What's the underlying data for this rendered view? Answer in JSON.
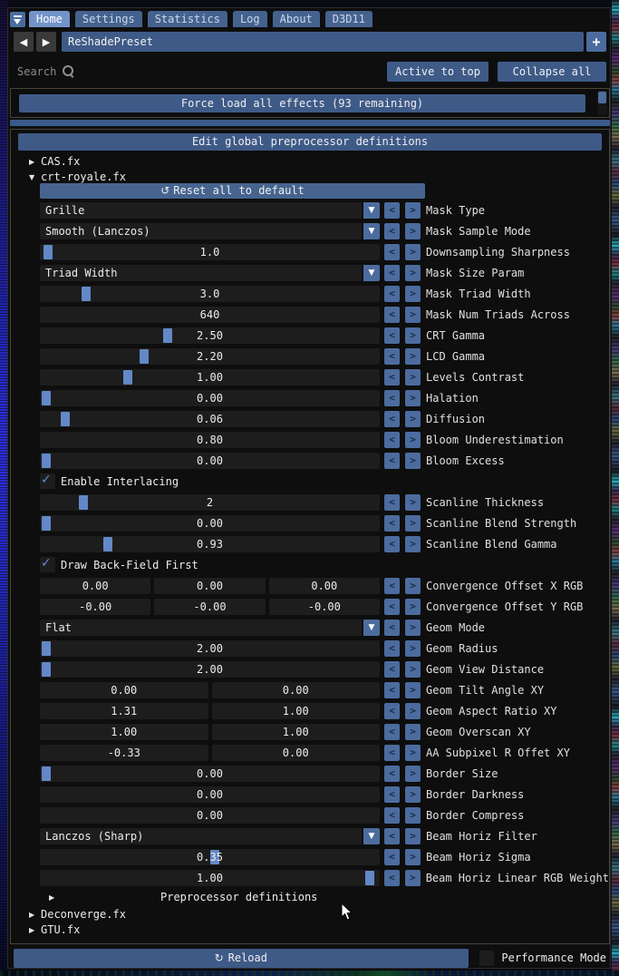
{
  "tabs": {
    "items": [
      "Home",
      "Settings",
      "Statistics",
      "Log",
      "About",
      "D3D11"
    ],
    "active": "Home"
  },
  "preset": {
    "value": "ReShadePreset"
  },
  "search": {
    "placeholder": "Search"
  },
  "header_buttons": {
    "active_to_top": "Active to top",
    "collapse_all": "Collapse all"
  },
  "force_load": {
    "label": "Force load all effects (93 remaining)"
  },
  "edit_global": {
    "label": "Edit global preprocessor definitions"
  },
  "reset": {
    "label": "Reset all to default"
  },
  "effects": {
    "cas": {
      "name": "CAS.fx",
      "expanded": false
    },
    "crt": {
      "name": "crt-royale.fx",
      "expanded": true
    },
    "deconverge": {
      "name": "Deconverge.fx",
      "expanded": false
    },
    "gtu": {
      "name": "GTU.fx",
      "expanded": false
    }
  },
  "crt_params": [
    {
      "type": "combo",
      "value": "Grille",
      "label": "Mask Type"
    },
    {
      "type": "combo",
      "value": "Smooth (Lanczos)",
      "label": "Mask Sample Mode"
    },
    {
      "type": "slider",
      "value": "1.0",
      "label": "Downsampling Sharpness",
      "grab": 0.008
    },
    {
      "type": "combo",
      "value": "Triad Width",
      "label": "Mask Size Param"
    },
    {
      "type": "slider",
      "value": "3.0",
      "label": "Mask Triad Width",
      "grab": 0.123
    },
    {
      "type": "drag",
      "value": "640",
      "label": "Mask Num Triads Across"
    },
    {
      "type": "slider",
      "value": "2.50",
      "label": "CRT Gamma",
      "grab": 0.373
    },
    {
      "type": "slider",
      "value": "2.20",
      "label": "LCD Gamma",
      "grab": 0.3
    },
    {
      "type": "slider",
      "value": "1.00",
      "label": "Levels Contrast",
      "grab": 0.25
    },
    {
      "type": "slider",
      "value": "0.00",
      "label": "Halation",
      "grab": 0.003
    },
    {
      "type": "slider",
      "value": "0.06",
      "label": "Diffusion",
      "grab": 0.06
    },
    {
      "type": "drag",
      "value": "0.80",
      "label": "Bloom Underestimation"
    },
    {
      "type": "slider",
      "value": "0.00",
      "label": "Bloom Excess",
      "grab": 0.003
    },
    {
      "type": "checkbox",
      "checked": true,
      "label": "Enable Interlacing"
    },
    {
      "type": "slider",
      "value": "2",
      "label": "Scanline Thickness",
      "grab": 0.115
    },
    {
      "type": "slider",
      "value": "0.00",
      "label": "Scanline Blend Strength",
      "grab": 0.003
    },
    {
      "type": "slider",
      "value": "0.93",
      "label": "Scanline Blend Gamma",
      "grab": 0.19
    },
    {
      "type": "checkbox",
      "checked": true,
      "label": "Draw Back-Field First"
    },
    {
      "type": "drag3",
      "values": [
        "0.00",
        "0.00",
        "0.00"
      ],
      "label": "Convergence Offset X RGB"
    },
    {
      "type": "drag3",
      "values": [
        "-0.00",
        "-0.00",
        "-0.00"
      ],
      "label": "Convergence Offset Y RGB"
    },
    {
      "type": "combo",
      "value": "Flat",
      "label": "Geom Mode"
    },
    {
      "type": "slider",
      "value": "2.00",
      "label": "Geom Radius",
      "grab": 0.003
    },
    {
      "type": "slider",
      "value": "2.00",
      "label": "Geom View Distance",
      "grab": 0.003
    },
    {
      "type": "drag2",
      "values": [
        "0.00",
        "0.00"
      ],
      "label": "Geom Tilt Angle XY"
    },
    {
      "type": "drag2",
      "values": [
        "1.31",
        "1.00"
      ],
      "label": "Geom Aspect Ratio XY"
    },
    {
      "type": "drag2",
      "values": [
        "1.00",
        "1.00"
      ],
      "label": "Geom Overscan XY"
    },
    {
      "type": "drag2",
      "values": [
        "-0.33",
        "0.00"
      ],
      "label": "AA Subpixel R Offet XY"
    },
    {
      "type": "slider",
      "value": "0.00",
      "label": "Border Size",
      "grab": 0.003
    },
    {
      "type": "drag",
      "value": "0.00",
      "label": "Border Darkness"
    },
    {
      "type": "drag",
      "value": "0.00",
      "label": "Border Compress"
    },
    {
      "type": "combo",
      "value": "Lanczos (Sharp)",
      "label": "Beam Horiz Filter"
    },
    {
      "type": "slider",
      "value": "0.35",
      "label": "Beam Horiz Sigma",
      "grab": 0.515
    },
    {
      "type": "slider",
      "value": "1.00",
      "label": "Beam Horiz Linear RGB Weight",
      "grab": 0.985
    }
  ],
  "preprocessor": {
    "label": "Preprocessor definitions"
  },
  "footer": {
    "reload_label": "Reload",
    "performance_label": "Performance Mode"
  },
  "colors": {
    "accent_blue": "#3e5a87",
    "light_blue": "#4c6c9f",
    "active_tab": "#7394c9",
    "grab_blue": "#6388c7",
    "field_bg": "#1d1d1d",
    "frame_border": "#46463c",
    "window_bg": "#0e0e0e"
  }
}
